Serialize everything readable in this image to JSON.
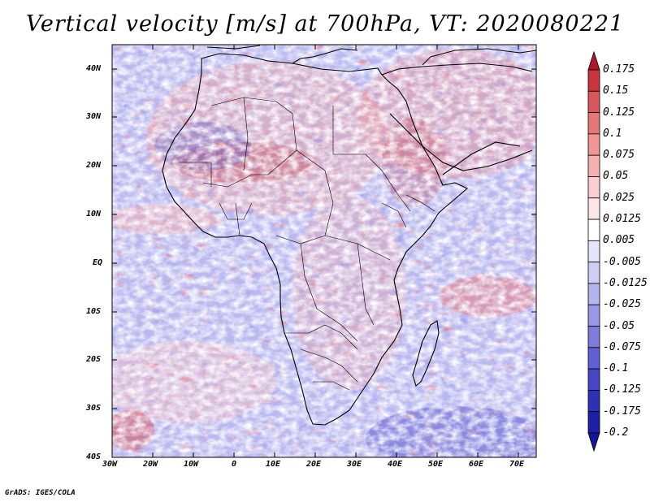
{
  "title": "Vertical velocity [m/s] at 700hPa, VT: 2020080221",
  "footer": "GrADS: IGES/COLA",
  "map": {
    "variable": "Vertical velocity",
    "units": "m/s",
    "level": "700hPa",
    "valid_time": "2020080221",
    "region": "Africa"
  },
  "lat_ticks": [
    "40N",
    "30N",
    "20N",
    "10N",
    "EQ",
    "10S",
    "20S",
    "30S",
    "40S"
  ],
  "lon_ticks": [
    "30W",
    "20W",
    "10W",
    "0",
    "10E",
    "20E",
    "30E",
    "40E",
    "50E",
    "60E",
    "70E"
  ],
  "colorbar": {
    "labels": [
      "0.175",
      "0.15",
      "0.125",
      "0.1",
      "0.075",
      "0.05",
      "0.025",
      "0.0125",
      "0.005",
      "-0.005",
      "-0.0125",
      "-0.025",
      "-0.05",
      "-0.075",
      "-0.1",
      "-0.125",
      "-0.175",
      "-0.2"
    ],
    "colors": [
      "#b2182b",
      "#c8353f",
      "#d9565c",
      "#e57779",
      "#ef9596",
      "#f5b2b2",
      "#f9cfcf",
      "#fce6e6",
      "#ffffff",
      "#e6e6fb",
      "#cfcff6",
      "#b4b4ef",
      "#9898e6",
      "#7c7cdc",
      "#6060d2",
      "#4646c4",
      "#3030b6",
      "#1e1ea6",
      "#15159a"
    ]
  }
}
